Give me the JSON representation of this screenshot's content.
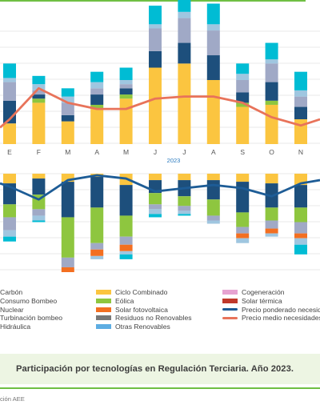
{
  "page": {
    "caption": "Participación por tecnologías en Regulación Terciaria. Año 2023.",
    "source": "ción AEE"
  },
  "colors": {
    "carbon": "#6b6b6b",
    "consumo_bombeo": "#9fc6e0",
    "nuclear": "#a0a9c6",
    "turbinacion_bombeo": "#1d4f7c",
    "hidraulica": "#00bcd4",
    "ciclo_combinado": "#fbc540",
    "eolica": "#8ec63f",
    "solar_fotovoltaica": "#f36f21",
    "residuos_no_renovables": "#787878",
    "otras_renovables": "#5dade2",
    "cogeneracion": "#e6a3d1",
    "solar_termica": "#c0392b",
    "precio_ponderado": "#1d5c96",
    "precio_medio": "#e8735a",
    "accent": "#6fbf44",
    "gridline": "#e3e3e3"
  },
  "legend": {
    "col1": [
      "Carbón",
      "Consumo Bombeo",
      "Nuclear",
      "Turbinación bombeo",
      "Hidráulica"
    ],
    "col2": [
      "Ciclo Combinado",
      "Eólica",
      "Solar fotovoltaica",
      "Residuos no Renovables",
      "Otras Renovables"
    ],
    "col3": [
      "Cogeneración",
      "Solar térmica",
      "Precio ponderado necesida",
      "Precio medio necesidades"
    ]
  },
  "chart_data": {
    "type": "bar",
    "stacked": true,
    "year_label": "2023",
    "categories": [
      "E",
      "F",
      "M",
      "A",
      "M",
      "J",
      "J",
      "A",
      "S",
      "O",
      "N"
    ],
    "upper_panel": {
      "series": [
        {
          "name": "Ciclo Combinado",
          "values": [
            10,
            20,
            11,
            17,
            22,
            37,
            39,
            31,
            18,
            19,
            12
          ]
        },
        {
          "name": "Eólica",
          "values": [
            0,
            2,
            0,
            2,
            2,
            0,
            0,
            0,
            2,
            2,
            0
          ]
        },
        {
          "name": "Turbinación bombeo",
          "values": [
            11,
            2,
            3,
            5,
            3,
            8,
            10,
            12,
            5,
            9,
            6
          ]
        },
        {
          "name": "Nuclear",
          "values": [
            9,
            2,
            6,
            3,
            2,
            11,
            12,
            12,
            6,
            9,
            5
          ]
        },
        {
          "name": "Consumo Bombeo",
          "values": [
            2,
            3,
            3,
            3,
            2,
            2,
            3,
            3,
            3,
            2,
            3
          ]
        },
        {
          "name": "Hidráulica",
          "values": [
            7,
            4,
            4,
            5,
            6,
            9,
            13,
            10,
            5,
            8,
            9
          ]
        }
      ],
      "lines": [
        {
          "name": "Precio medio necesidades",
          "values": [
            12,
            27,
            20,
            17,
            17,
            22,
            23,
            23,
            20,
            13,
            9
          ]
        }
      ]
    },
    "lower_panel": {
      "series": [
        {
          "name": "Ciclo Combinado",
          "values": [
            6,
            3,
            5,
            2,
            7,
            4,
            4,
            4,
            5,
            6,
            7
          ]
        },
        {
          "name": "Turbinación bombeo",
          "values": [
            13,
            10,
            22,
            19,
            19,
            8,
            10,
            12,
            19,
            15,
            14
          ]
        },
        {
          "name": "Eólica",
          "values": [
            8,
            9,
            25,
            22,
            13,
            7,
            6,
            10,
            9,
            8,
            9
          ]
        },
        {
          "name": "Nuclear",
          "values": [
            8,
            4,
            6,
            4,
            5,
            3,
            3,
            3,
            4,
            5,
            7
          ]
        },
        {
          "name": "Solar fotovoltaica",
          "values": [
            0,
            0,
            4,
            4,
            4,
            0,
            0,
            0,
            3,
            3,
            3
          ]
        },
        {
          "name": "Consumo Bombeo",
          "values": [
            4,
            3,
            3,
            2,
            2,
            3,
            2,
            2,
            3,
            2,
            4
          ]
        },
        {
          "name": "Hidráulica",
          "values": [
            3,
            1,
            4,
            0,
            3,
            2,
            1,
            0,
            0,
            0,
            6
          ]
        }
      ],
      "lines": [
        {
          "name": "Precio ponderado necesida",
          "values": [
            8,
            16,
            4,
            1,
            3,
            11,
            9,
            7,
            9,
            14,
            6
          ]
        }
      ]
    }
  }
}
